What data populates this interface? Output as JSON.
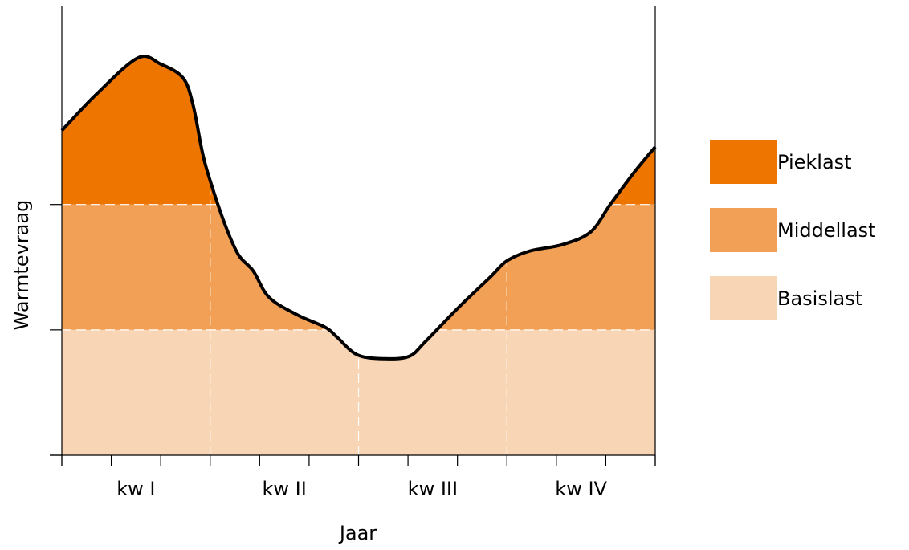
{
  "chart_data": {
    "type": "area",
    "x_label": "Jaar",
    "y_label": "Warmtevraag",
    "categories": [
      "kw I",
      "kw II",
      "kw III",
      "kw IV"
    ],
    "x": [
      0,
      0.7,
      1.54,
      2.0,
      2.45,
      2.65,
      2.84,
      3.0,
      3.3,
      3.57,
      3.87,
      4.19,
      4.76,
      5.33,
      5.57,
      5.98,
      6.54,
      7.03,
      7.36,
      8.0,
      8.66,
      9.0,
      9.47,
      10.12,
      10.69,
      11.09,
      11.58,
      12
    ],
    "values": [
      2.59,
      2.88,
      3.17,
      3.12,
      3.01,
      2.8,
      2.42,
      2.19,
      1.84,
      1.6,
      1.47,
      1.26,
      1.12,
      1.02,
      0.94,
      0.8,
      0.77,
      0.79,
      0.91,
      1.17,
      1.42,
      1.55,
      1.63,
      1.68,
      1.78,
      2.0,
      2.26,
      2.46
    ],
    "line_color": "#000000",
    "series": [
      {
        "name": "Basislast",
        "color": "#f8d5b5"
      },
      {
        "name": "Middellast",
        "color": "#f2a055"
      },
      {
        "name": "Pieklast",
        "color": "#ee7500"
      }
    ],
    "xlim": [
      0,
      12
    ],
    "xticks": [
      0,
      1,
      2,
      3,
      4,
      5,
      6,
      7,
      8,
      9,
      10,
      11,
      12
    ],
    "xgrid": [
      3,
      6,
      9
    ],
    "ylim": [
      0,
      3.58
    ],
    "yticks": [
      0,
      1,
      2
    ],
    "grid": true,
    "legend": "right"
  }
}
